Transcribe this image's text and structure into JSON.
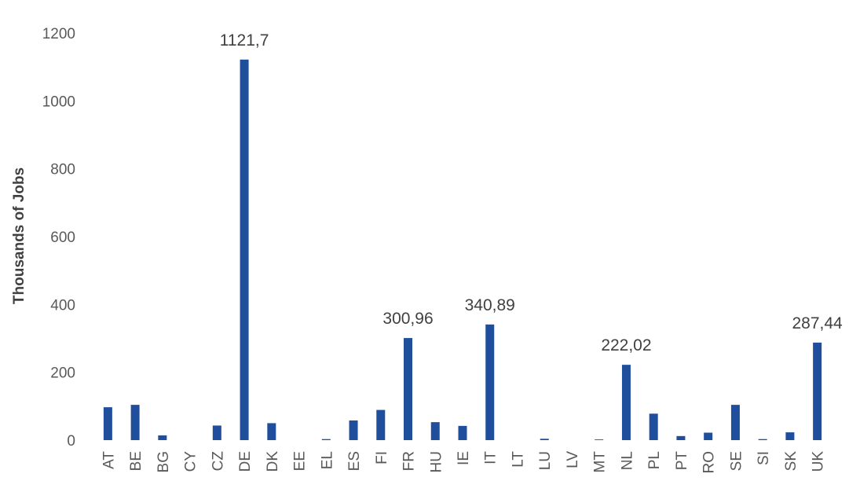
{
  "chart_data": {
    "type": "bar",
    "ylabel": "Thousands of Jobs",
    "ylim": [
      0,
      1200
    ],
    "yticks": [
      0,
      200,
      400,
      600,
      800,
      1000,
      1200
    ],
    "grid": false,
    "bar_color": "#1f4e9c",
    "categories": [
      "AT",
      "BE",
      "BG",
      "CY",
      "CZ",
      "DE",
      "DK",
      "EE",
      "EL",
      "ES",
      "FI",
      "FR",
      "HU",
      "IE",
      "IT",
      "LT",
      "LU",
      "LV",
      "MT",
      "NL",
      "PL",
      "PT",
      "RO",
      "SE",
      "SI",
      "SK",
      "UK"
    ],
    "values": [
      97,
      104,
      14,
      0,
      43,
      1121.7,
      50,
      0,
      3,
      58,
      89,
      300.96,
      53,
      42,
      340.89,
      0,
      4,
      0,
      2,
      222.02,
      78,
      12,
      22,
      104,
      3,
      23,
      287.44
    ],
    "data_labels": [
      {
        "category": "DE",
        "text": "1121,7"
      },
      {
        "category": "FR",
        "text": "300,96"
      },
      {
        "category": "IT",
        "text": "340,89"
      },
      {
        "category": "NL",
        "text": "222,02"
      },
      {
        "category": "UK",
        "text": "287,44"
      }
    ]
  }
}
